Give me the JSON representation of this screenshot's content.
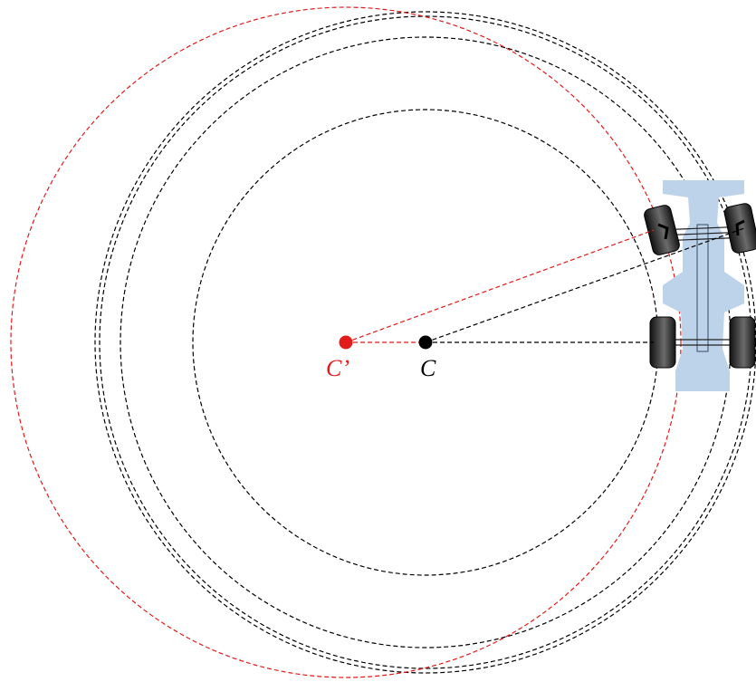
{
  "labels": {
    "center": "C",
    "center_shifted": "C’"
  },
  "colors": {
    "black_construction": "#000000",
    "red_construction": "#e21b1b",
    "car_body": "#bcd3ea",
    "tire": "#1f1f1f",
    "background": "#ffffff"
  },
  "icons": {
    "vehicle": "car-top-view-icon",
    "tire": "tire-icon"
  }
}
